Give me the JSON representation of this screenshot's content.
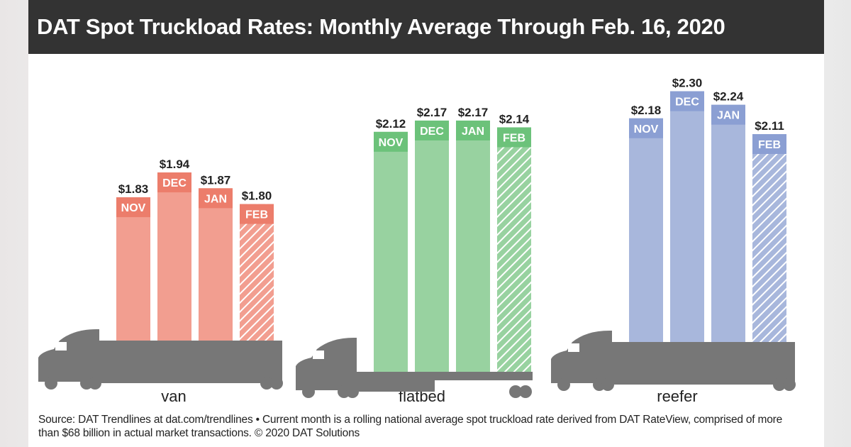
{
  "title": "DAT Spot Truckload Rates: Monthly Average Through Feb. 16, 2020",
  "source": "Source: DAT Trendlines at dat.com/trendlines • Current month is a rolling national average spot truckload rate derived from DAT RateView, comprised of more than $68 billion in actual market transactions. © 2020 DAT Solutions",
  "chart_data": {
    "type": "bar",
    "title": "DAT Spot Truckload Rates: Monthly Average Through Feb. 16, 2020",
    "categories": [
      "NOV",
      "DEC",
      "JAN",
      "FEB"
    ],
    "value_prefix": "$",
    "groups": [
      {
        "name": "van",
        "values": [
          1.83,
          1.94,
          1.87,
          1.8
        ],
        "color": "#f29e90",
        "band_color": "#ec7d6b"
      },
      {
        "name": "flatbed",
        "values": [
          2.12,
          2.17,
          2.17,
          2.14
        ],
        "color": "#98d2a0",
        "band_color": "#6cc27a"
      },
      {
        "name": "reefer",
        "values": [
          2.18,
          2.3,
          2.24,
          2.11
        ],
        "color": "#a8b7dc",
        "band_color": "#8b9fd3"
      }
    ],
    "hatched_category": "FEB",
    "hatched_note": "Current month is a rolling national average"
  }
}
